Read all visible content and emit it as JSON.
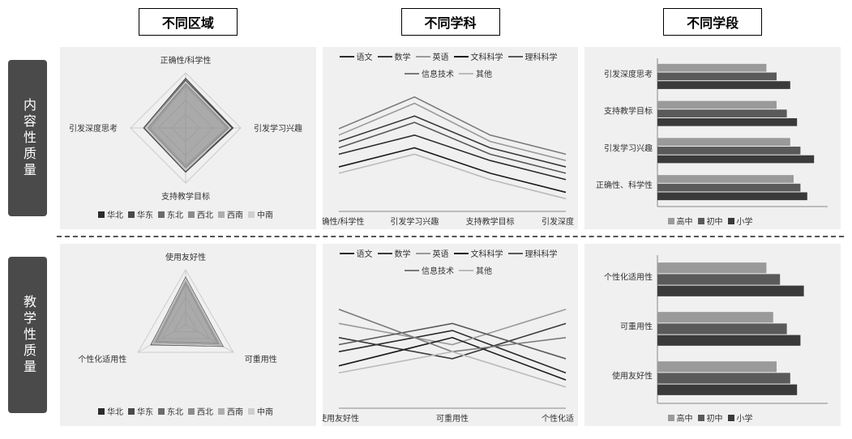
{
  "columns": [
    "不同区域",
    "不同学科",
    "不同学段"
  ],
  "rows": [
    "内容性质量",
    "教学性质量"
  ],
  "regions": [
    "华北",
    "华东",
    "东北",
    "西北",
    "西南",
    "中南"
  ],
  "region_colors": [
    "#2b2b2b",
    "#4a4a4a",
    "#6b6b6b",
    "#8c8c8c",
    "#adadad",
    "#cecece"
  ],
  "subjects": [
    "语文",
    "数学",
    "英语",
    "文科科学",
    "理科科学",
    "信息技术",
    "其他"
  ],
  "subject_colors": [
    "#2b2b2b",
    "#3a3a3a",
    "#9a9a9a",
    "#1a1a1a",
    "#5a5a5a",
    "#7a7a7a",
    "#bababa"
  ],
  "stages": [
    "高中",
    "初中",
    "小学"
  ],
  "stage_colors": [
    "#9a9a9a",
    "#5a5a5a",
    "#3a3a3a"
  ],
  "radar1": {
    "axes": [
      "正确性/科学性",
      "引发学习兴趣",
      "支持教学目标",
      "引发深度思考"
    ],
    "max": 5,
    "series": [
      [
        4.3,
        4.2,
        3.8,
        3.6
      ],
      [
        4.5,
        4.3,
        4.0,
        3.8
      ],
      [
        4.0,
        3.9,
        3.6,
        3.4
      ],
      [
        3.8,
        3.7,
        3.4,
        3.2
      ],
      [
        4.1,
        4.0,
        3.7,
        3.5
      ],
      [
        4.2,
        4.1,
        3.8,
        3.6
      ]
    ]
  },
  "radar2": {
    "axes": [
      "使用友好性",
      "可重用性",
      "个性化适用性"
    ],
    "max": 5,
    "series": [
      [
        4.1,
        3.7,
        3.4
      ],
      [
        4.3,
        3.9,
        3.6
      ],
      [
        3.9,
        3.5,
        3.2
      ],
      [
        3.7,
        3.3,
        3.0
      ],
      [
        4.0,
        3.6,
        3.3
      ],
      [
        4.2,
        3.8,
        3.5
      ]
    ]
  },
  "line1": {
    "x": [
      "正确性/科学性",
      "引发学习兴趣",
      "支持教学目标",
      "引发深度思考"
    ],
    "ylim": [
      2.8,
      4.8
    ],
    "series": [
      [
        3.7,
        4.0,
        3.6,
        3.3
      ],
      [
        3.9,
        4.3,
        3.8,
        3.5
      ],
      [
        4.0,
        4.5,
        3.9,
        3.6
      ],
      [
        3.5,
        3.8,
        3.4,
        3.1
      ],
      [
        3.8,
        4.2,
        3.7,
        3.4
      ],
      [
        4.1,
        4.6,
        4.0,
        3.7
      ],
      [
        3.4,
        3.7,
        3.3,
        3.0
      ]
    ]
  },
  "line2": {
    "x": [
      "使用友好性",
      "可重用性",
      "个性化适用性"
    ],
    "ylim": [
      2.8,
      4.6
    ],
    "series": [
      [
        3.6,
        3.9,
        3.3
      ],
      [
        3.8,
        3.5,
        4.0
      ],
      [
        4.0,
        3.7,
        4.2
      ],
      [
        3.4,
        3.8,
        3.2
      ],
      [
        3.7,
        4.0,
        3.5
      ],
      [
        4.2,
        3.6,
        3.8
      ],
      [
        3.3,
        3.6,
        3.1
      ]
    ]
  },
  "bar1": {
    "categories": [
      "引发深度思考",
      "支持教学目标",
      "引发学习兴趣",
      "正确性、科学性"
    ],
    "xlim": [
      0,
      5
    ],
    "series": [
      [
        3.2,
        3.5,
        3.9,
        4.0
      ],
      [
        3.5,
        3.8,
        4.2,
        4.2
      ],
      [
        3.9,
        4.1,
        4.6,
        4.4
      ]
    ]
  },
  "bar2": {
    "categories": [
      "个性化适用性",
      "可重用性",
      "使用友好性"
    ],
    "xlim": [
      0,
      5
    ],
    "series": [
      [
        3.2,
        3.4,
        3.5
      ],
      [
        3.6,
        3.8,
        3.9
      ],
      [
        4.3,
        4.2,
        4.1
      ]
    ]
  },
  "chart_bg": "#f0f0f0",
  "grid_color": "#cccccc",
  "text_color": "#333333"
}
